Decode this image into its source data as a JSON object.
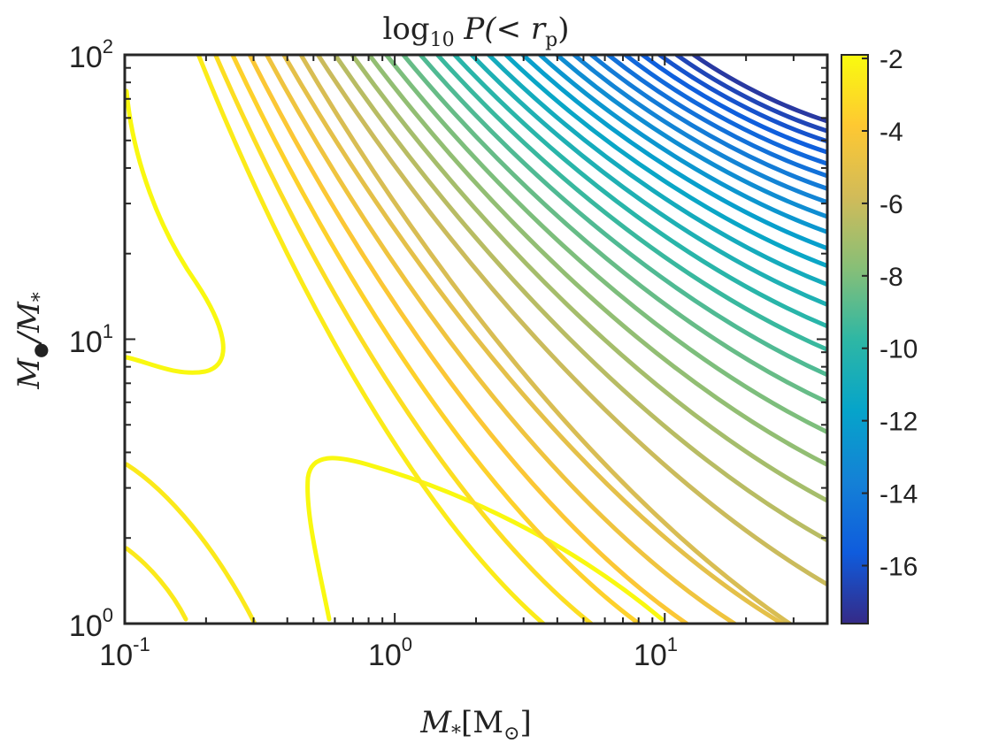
{
  "chart_data": {
    "type": "contour",
    "title_prefix": "log",
    "title_sub": "10",
    "title_main": " P(< r",
    "title_main_sub": "p",
    "title_end": ")",
    "xlabel_main": "M",
    "xlabel_sub": "*",
    "xlabel_bracket": "[M",
    "xlabel_bracket_sub": "⊙",
    "xlabel_end": "]",
    "ylabel_main": "M",
    "ylabel_sub": "●",
    "ylabel_slash": "/M",
    "ylabel_sub2": "*",
    "x_scale": "log",
    "y_scale": "log",
    "xlim": [
      0.1,
      40
    ],
    "ylim": [
      1,
      100
    ],
    "x_ticks": [
      {
        "base": "10",
        "exp": "-1"
      },
      {
        "base": "10",
        "exp": "0"
      },
      {
        "base": "10",
        "exp": "1"
      }
    ],
    "y_ticks": [
      {
        "base": "10",
        "exp": "0"
      },
      {
        "base": "10",
        "exp": "1"
      },
      {
        "base": "10",
        "exp": "2"
      }
    ],
    "colorbar": {
      "range": [
        -17.6,
        -1.9
      ],
      "tick_labels": [
        "-2",
        "-4",
        "-6",
        "-8",
        "-10",
        "-12",
        "-14",
        "-16"
      ],
      "colormap": "parula"
    },
    "contour_levels_note": "levels from -2 to -17.5",
    "grid": false
  }
}
